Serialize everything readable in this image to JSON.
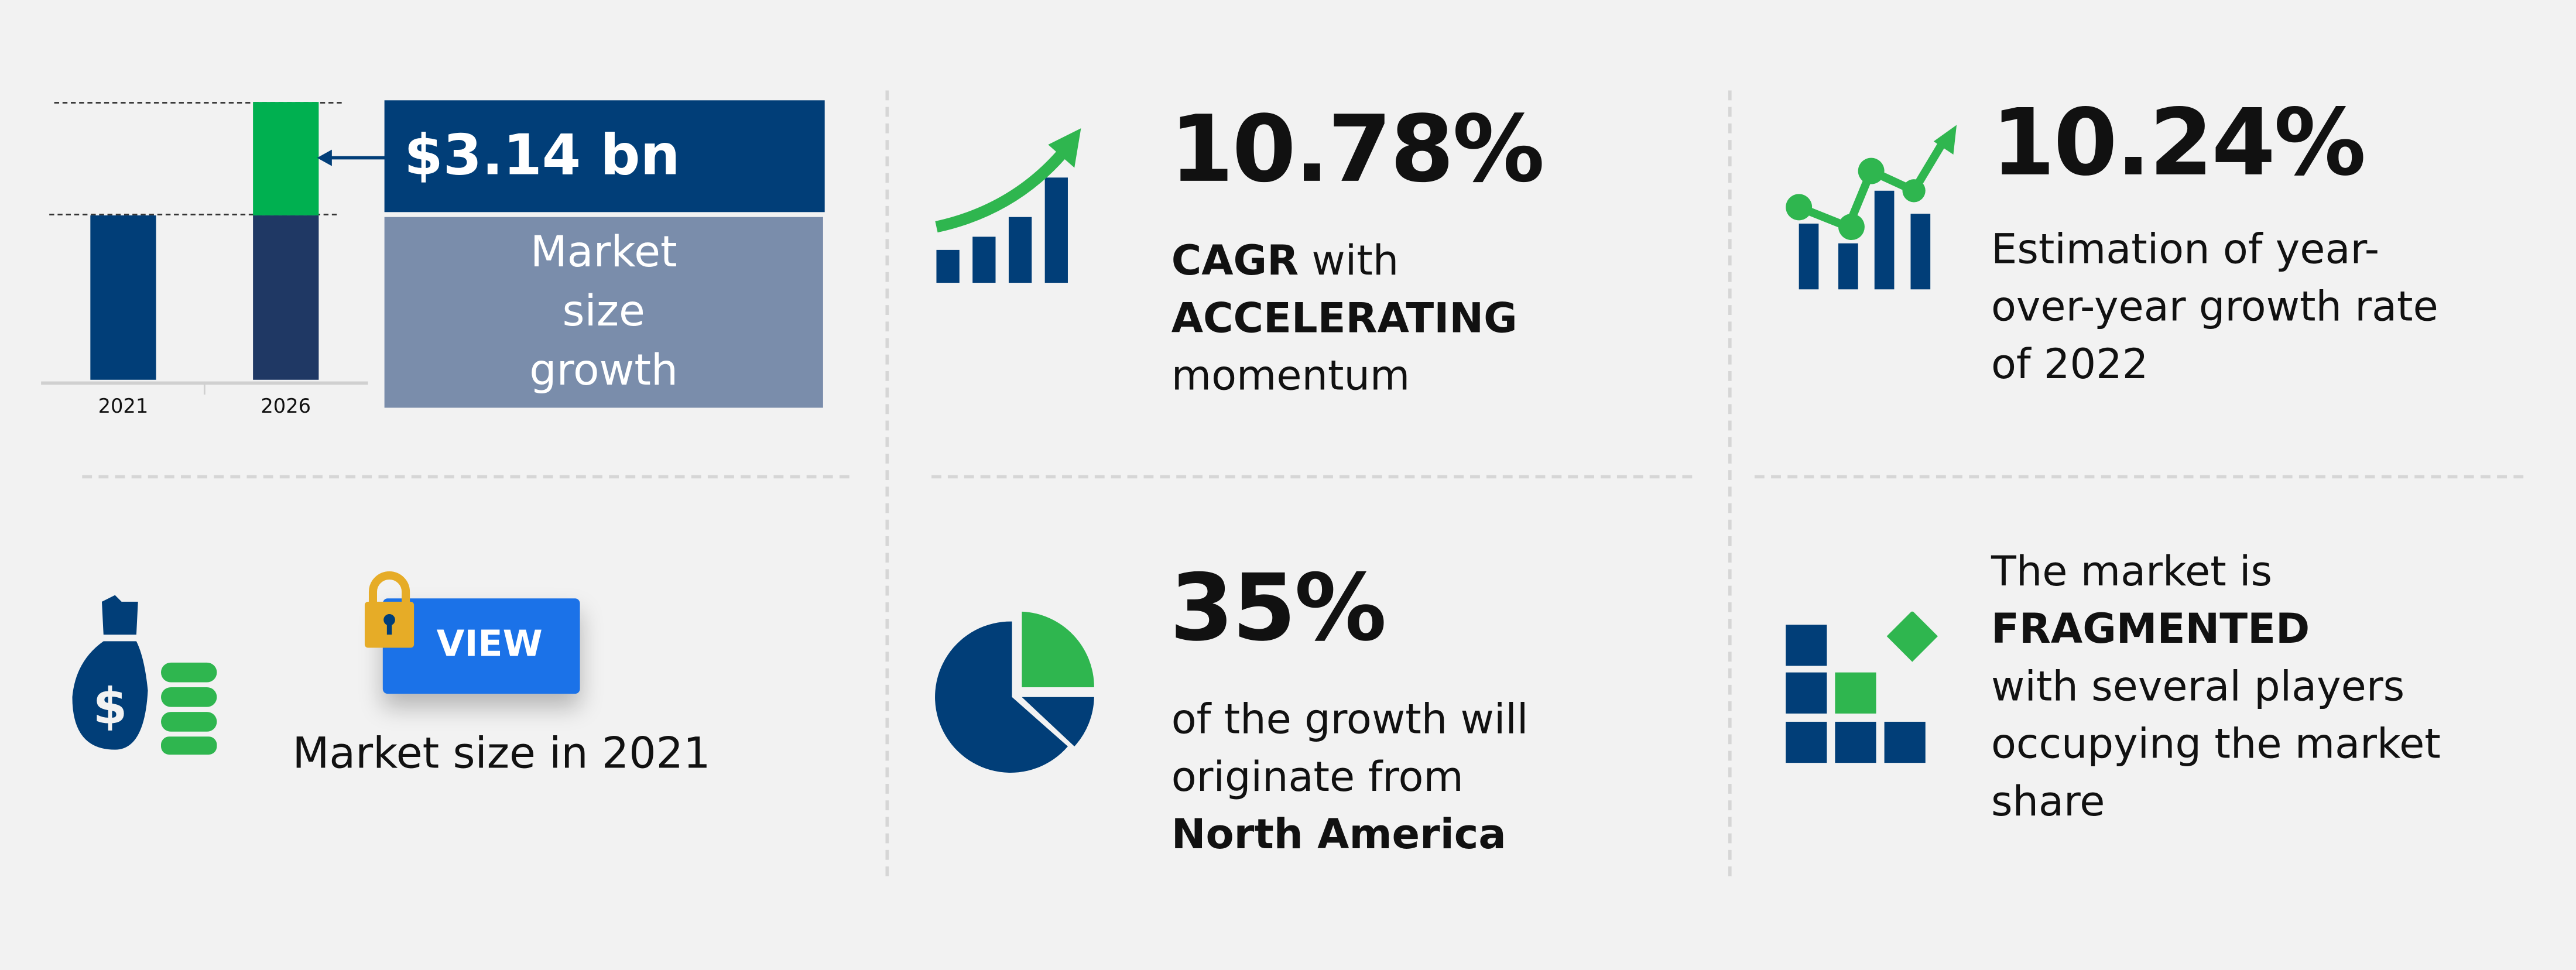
{
  "colors": {
    "dark_blue": "#013e78",
    "navy": "#1f3864",
    "green": "#00b050",
    "light_green": "#2fb64f",
    "slate": "#7a8dab",
    "view_blue": "#1b72e8",
    "lock_gold": "#e6ac27"
  },
  "chart_data": {
    "type": "bar",
    "categories": [
      "2021",
      "2026"
    ],
    "series": [
      {
        "values": [
          1,
          1
        ]
      },
      {
        "values": [
          0,
          0.68
        ]
      }
    ],
    "annotation": "$3.14 bn",
    "annotation_label": "Market size growth"
  },
  "market_growth": {
    "value": "$3.14 bn",
    "label": "Market size growth"
  },
  "cagr": {
    "value": "10.78%",
    "bold1": "CAGR",
    "text1": " with",
    "bold2": "ACCELERATING",
    "text2": "momentum",
    "icon": "rising-bar-chart-icon"
  },
  "yoy": {
    "value": "10.24%",
    "text": "Estimation of year-over-year growth rate of 2022",
    "icon": "line-bar-chart-icon"
  },
  "market_size": {
    "button": "VIEW",
    "label": "Market size in 2021",
    "icons": [
      "money-bag-icon",
      "lock-icon"
    ]
  },
  "region": {
    "value": "35%",
    "text": "of the growth will originate from",
    "bold": "North America",
    "icon": "pie-chart-icon"
  },
  "fragmentation": {
    "text1": "The market is",
    "bold": "FRAGMENTED",
    "text2": "with several players occupying the market share",
    "icon": "blocks-icon"
  }
}
